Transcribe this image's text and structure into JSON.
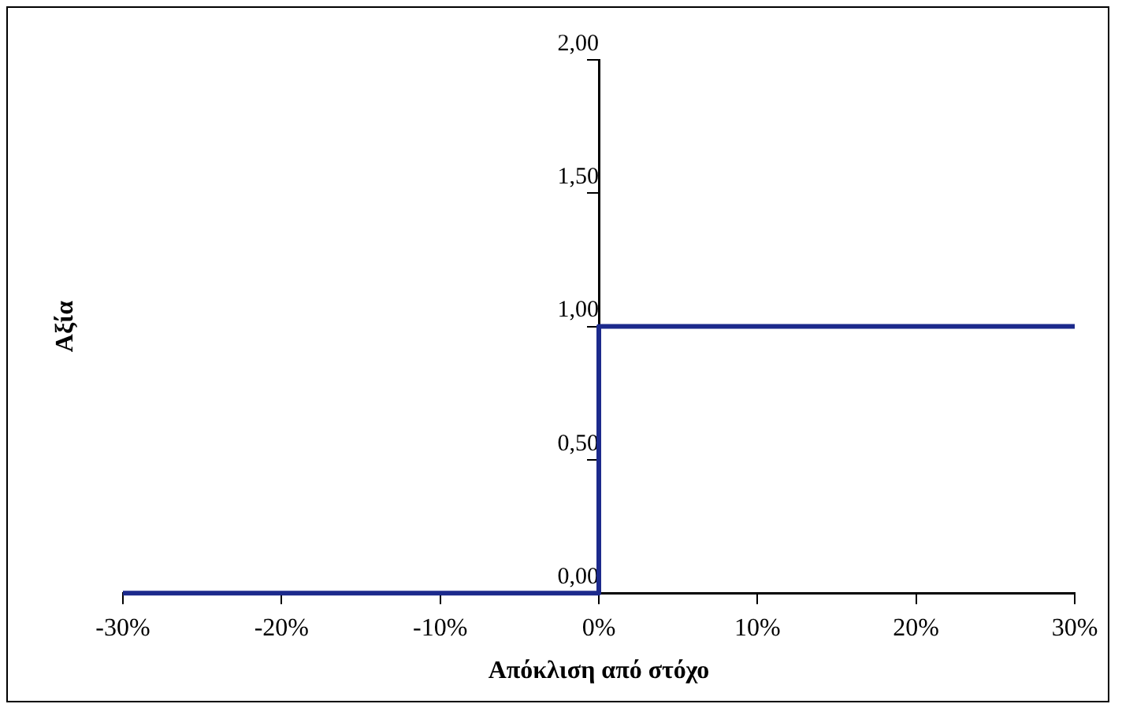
{
  "chart_data": {
    "type": "step",
    "xlabel": "Απόκλιση από στόχο",
    "ylabel": "Αξία",
    "x": [
      -30,
      0,
      30
    ],
    "series": [
      {
        "color": "#1c2a8c",
        "values": [
          0,
          1,
          1
        ]
      }
    ],
    "xlim": [
      -30,
      30
    ],
    "xticks": [
      {
        "value": -30,
        "label": "-30%"
      },
      {
        "value": -20,
        "label": "-20%"
      },
      {
        "value": -10,
        "label": "-10%"
      },
      {
        "value": 0,
        "label": "0%"
      },
      {
        "value": 10,
        "label": "10%"
      },
      {
        "value": 20,
        "label": "20%"
      },
      {
        "value": 30,
        "label": "30%"
      }
    ],
    "ylim": [
      0,
      2
    ],
    "yticks": [
      {
        "value": 0,
        "label": "0,00"
      },
      {
        "value": 0.5,
        "label": "0,50"
      },
      {
        "value": 1,
        "label": "1,00"
      },
      {
        "value": 1.5,
        "label": "1,50"
      },
      {
        "value": 2,
        "label": "2,00"
      }
    ],
    "grid": false,
    "legend": false,
    "marker": "none",
    "line_style": "solid"
  }
}
